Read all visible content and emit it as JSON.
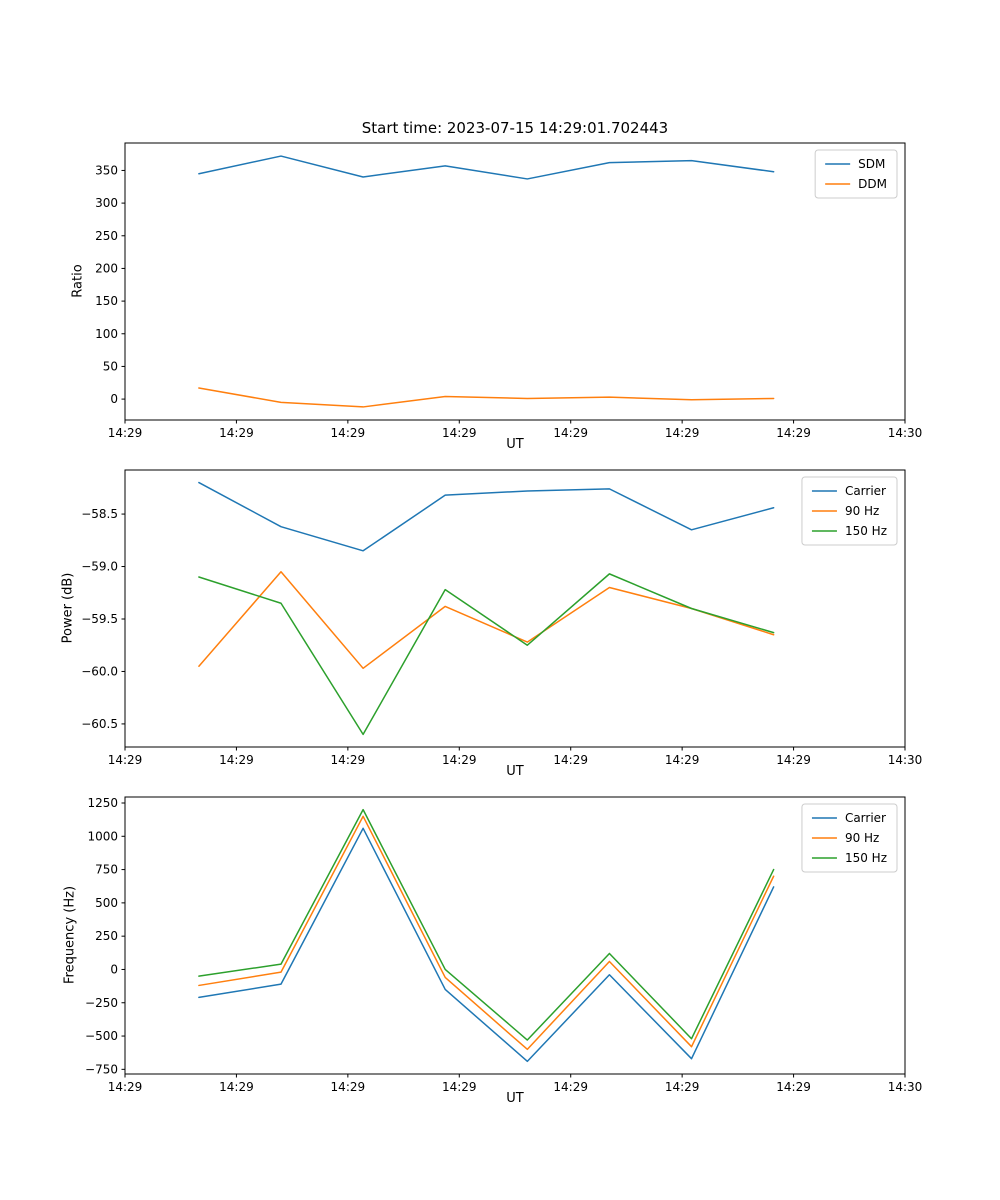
{
  "figure": {
    "background": "#ffffff"
  },
  "chart_data": [
    {
      "type": "line",
      "title": "Start time: 2023-07-15 14:29:01.702443",
      "xlabel": "UT",
      "ylabel": "Ratio",
      "grid": false,
      "legend_position": "upper right",
      "x_ticklabels": [
        "14:29",
        "14:29",
        "14:29",
        "14:29",
        "14:29",
        "14:29",
        "14:29",
        "14:30"
      ],
      "yticks": [
        0,
        50,
        100,
        150,
        200,
        250,
        300,
        350
      ],
      "y_ticklabels": [
        "0",
        "50",
        "100",
        "150",
        "200",
        "250",
        "300",
        "350"
      ],
      "ylim": [
        -32,
        392
      ],
      "x": [
        1,
        2,
        3,
        4,
        5,
        6,
        7,
        8
      ],
      "xlim": [
        0.1,
        9.6
      ],
      "series": [
        {
          "name": "SDM",
          "color": "#1f77b4",
          "values": [
            345,
            372,
            340,
            357,
            337,
            362,
            365,
            348
          ]
        },
        {
          "name": "DDM",
          "color": "#ff7f0e",
          "values": [
            17,
            -5,
            -12,
            4,
            1,
            3,
            -1,
            1
          ]
        }
      ]
    },
    {
      "type": "line",
      "title": "",
      "xlabel": "UT",
      "ylabel": "Power (dB)",
      "grid": false,
      "legend_position": "upper right",
      "x_ticklabels": [
        "14:29",
        "14:29",
        "14:29",
        "14:29",
        "14:29",
        "14:29",
        "14:29",
        "14:30"
      ],
      "yticks": [
        -60.5,
        -60,
        -59.5,
        -59,
        -58.5
      ],
      "y_ticklabels": [
        "-60.5",
        "-60.0",
        "-59.5",
        "-59.0",
        "-58.5"
      ],
      "ylim": [
        -60.72,
        -58.08
      ],
      "x": [
        1,
        2,
        3,
        4,
        5,
        6,
        7,
        8
      ],
      "xlim": [
        0.1,
        9.6
      ],
      "series": [
        {
          "name": "Carrier",
          "color": "#1f77b4",
          "values": [
            -58.2,
            -58.62,
            -58.85,
            -58.32,
            -58.28,
            -58.26,
            -58.65,
            -58.44
          ]
        },
        {
          "name": "90 Hz",
          "color": "#ff7f0e",
          "values": [
            -59.95,
            -59.05,
            -59.97,
            -59.38,
            -59.72,
            -59.2,
            -59.4,
            -59.65
          ]
        },
        {
          "name": "150 Hz",
          "color": "#2ca02c",
          "values": [
            -59.1,
            -59.35,
            -60.6,
            -59.22,
            -59.75,
            -59.07,
            -59.4,
            -59.63
          ]
        }
      ]
    },
    {
      "type": "line",
      "title": "",
      "xlabel": "UT",
      "ylabel": "Frequency (Hz)",
      "grid": false,
      "legend_position": "upper right",
      "x_ticklabels": [
        "14:29",
        "14:29",
        "14:29",
        "14:29",
        "14:29",
        "14:29",
        "14:29",
        "14:30"
      ],
      "yticks": [
        -750,
        -500,
        -250,
        0,
        250,
        500,
        750,
        1000,
        1250
      ],
      "y_ticklabels": [
        "-750",
        "-500",
        "-250",
        "0",
        "250",
        "500",
        "750",
        "1000",
        "1250"
      ],
      "ylim": [
        -785,
        1295
      ],
      "x": [
        1,
        2,
        3,
        4,
        5,
        6,
        7,
        8
      ],
      "xlim": [
        0.1,
        9.6
      ],
      "series": [
        {
          "name": "Carrier",
          "color": "#1f77b4",
          "values": [
            -210,
            -110,
            1060,
            -150,
            -690,
            -40,
            -670,
            620
          ]
        },
        {
          "name": "90 Hz",
          "color": "#ff7f0e",
          "values": [
            -120,
            -20,
            1150,
            -60,
            -600,
            60,
            -580,
            700
          ]
        },
        {
          "name": "150 Hz",
          "color": "#2ca02c",
          "values": [
            -50,
            40,
            1200,
            0,
            -530,
            120,
            -520,
            750
          ]
        }
      ]
    }
  ]
}
